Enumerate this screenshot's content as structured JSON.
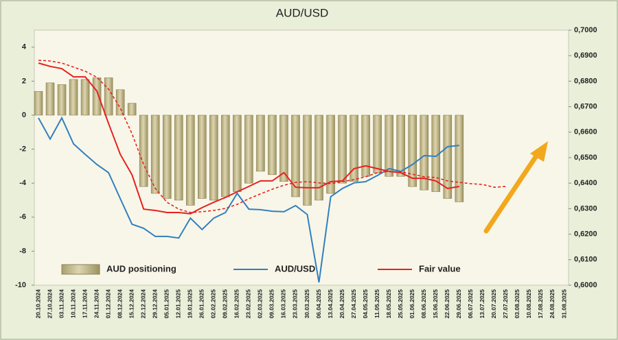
{
  "chart_data": {
    "type": "combo",
    "title": "AUD/USD",
    "categories": [
      "20.10.2024",
      "27.10.2024",
      "03.11.2024",
      "10.11.2024",
      "17.11.2024",
      "24.11.2024",
      "01.12.2024",
      "08.12.2024",
      "15.12.2024",
      "22.12.2024",
      "29.12.2024",
      "05.01.2025",
      "12.01.2025",
      "19.01.2025",
      "26.01.2025",
      "02.02.2025",
      "09.02.2025",
      "16.02.2025",
      "23.02.2025",
      "02.03.2025",
      "09.03.2025",
      "16.03.2025",
      "23.03.2025",
      "30.03.2025",
      "06.04.2025",
      "13.04.2025",
      "20.04.2025",
      "27.04.2025",
      "04.05.2025",
      "11.05.2025",
      "18.05.2025",
      "25.05.2025",
      "01.06.2025",
      "08.06.2025",
      "15.06.2025",
      "22.06.2025",
      "29.06.2025",
      "06.07.2025",
      "13.07.2025",
      "20.07.2025",
      "27.07.2025",
      "03.08.2025",
      "10.08.2025",
      "17.08.2025",
      "24.08.2025",
      "31.08.2025"
    ],
    "series": [
      {
        "name": "AUD positioning",
        "type": "bar",
        "color": "#c9c096",
        "values": [
          1.4,
          1.9,
          1.8,
          2.1,
          2.1,
          2.2,
          2.2,
          1.5,
          0.7,
          -4.2,
          -4.6,
          -4.9,
          -5.0,
          -5.3,
          -4.9,
          -5.0,
          -4.8,
          -4.5,
          -4.0,
          -3.3,
          -3.5,
          -3.9,
          -4.8,
          -5.3,
          -5.0,
          -4.6,
          -4.0,
          -3.9,
          -3.6,
          -3.4,
          -3.6,
          -3.6,
          -4.2,
          -4.4,
          -4.5,
          -4.9,
          -5.1,
          null,
          null,
          null,
          null,
          null,
          null,
          null,
          null,
          null
        ]
      },
      {
        "name": "AUD/USD",
        "type": "line",
        "axis": "y2",
        "color": "#2f7fc1",
        "values": [
          0.6656,
          0.6573,
          0.6656,
          0.6554,
          0.6513,
          0.6473,
          0.6441,
          0.6339,
          0.6239,
          0.6223,
          0.6191,
          0.6191,
          0.6185,
          0.6263,
          0.6218,
          0.6263,
          0.6285,
          0.636,
          0.6298,
          0.6296,
          0.629,
          0.6288,
          0.6312,
          0.6277,
          0.6011,
          0.6347,
          0.6379,
          0.6401,
          0.6406,
          0.643,
          0.6457,
          0.6446,
          0.6473,
          0.6508,
          0.6505,
          0.6543,
          0.6548,
          null,
          null,
          null,
          null,
          null,
          null,
          null,
          null,
          null
        ]
      },
      {
        "name": "Fair value",
        "type": "line",
        "axis": "y2",
        "color": "#e8201e",
        "values": [
          0.6871,
          0.6858,
          0.6849,
          0.6817,
          0.6817,
          0.6761,
          0.6634,
          0.6513,
          0.6433,
          0.6298,
          0.6293,
          0.6285,
          0.6285,
          0.628,
          0.6304,
          0.6325,
          0.6344,
          0.6366,
          0.6387,
          0.6409,
          0.6409,
          0.6441,
          0.6384,
          0.6382,
          0.6382,
          0.6406,
          0.6409,
          0.6457,
          0.6468,
          0.6457,
          0.6446,
          0.6441,
          0.6419,
          0.6419,
          0.6409,
          0.6379,
          0.6387,
          null,
          null,
          null,
          null,
          null,
          null,
          null,
          null,
          null
        ]
      },
      {
        "type": "line",
        "axis": "y2",
        "color": "#e8201e",
        "dashed": true,
        "values": [
          0.6882,
          0.6879,
          0.6871,
          0.6855,
          0.6839,
          0.6815,
          0.6769,
          0.6694,
          0.6594,
          0.6473,
          0.6379,
          0.6325,
          0.6298,
          0.6285,
          0.6288,
          0.6293,
          0.6301,
          0.6317,
          0.6339,
          0.6358,
          0.6376,
          0.6392,
          0.6403,
          0.6406,
          0.6401,
          0.6398,
          0.6406,
          0.6414,
          0.6425,
          0.6441,
          0.6446,
          0.6444,
          0.6435,
          0.6425,
          0.6422,
          0.6409,
          0.6403,
          0.6398,
          0.6395,
          0.6384,
          0.6387,
          null,
          null,
          null,
          null,
          null
        ]
      }
    ],
    "ylim": [
      -10,
      5
    ],
    "yticks": [
      -10,
      -8,
      -6,
      -4,
      -2,
      0,
      2,
      4
    ],
    "y2lim": [
      0.6,
      0.7
    ],
    "y2ticks": [
      {
        "value": 0.6,
        "label": "0,6000"
      },
      {
        "value": 0.61,
        "label": "0,6100"
      },
      {
        "value": 0.62,
        "label": "0,6200"
      },
      {
        "value": 0.63,
        "label": "0,6300"
      },
      {
        "value": 0.64,
        "label": "0,6400"
      },
      {
        "value": 0.65,
        "label": "0,6500"
      },
      {
        "value": 0.66,
        "label": "0,6600"
      },
      {
        "value": 0.67,
        "label": "0,6700"
      },
      {
        "value": 0.68,
        "label": "0,6800"
      },
      {
        "value": 0.69,
        "label": "0,6900"
      },
      {
        "value": 0.7,
        "label": "0,7000"
      }
    ],
    "legend": "bottom"
  }
}
